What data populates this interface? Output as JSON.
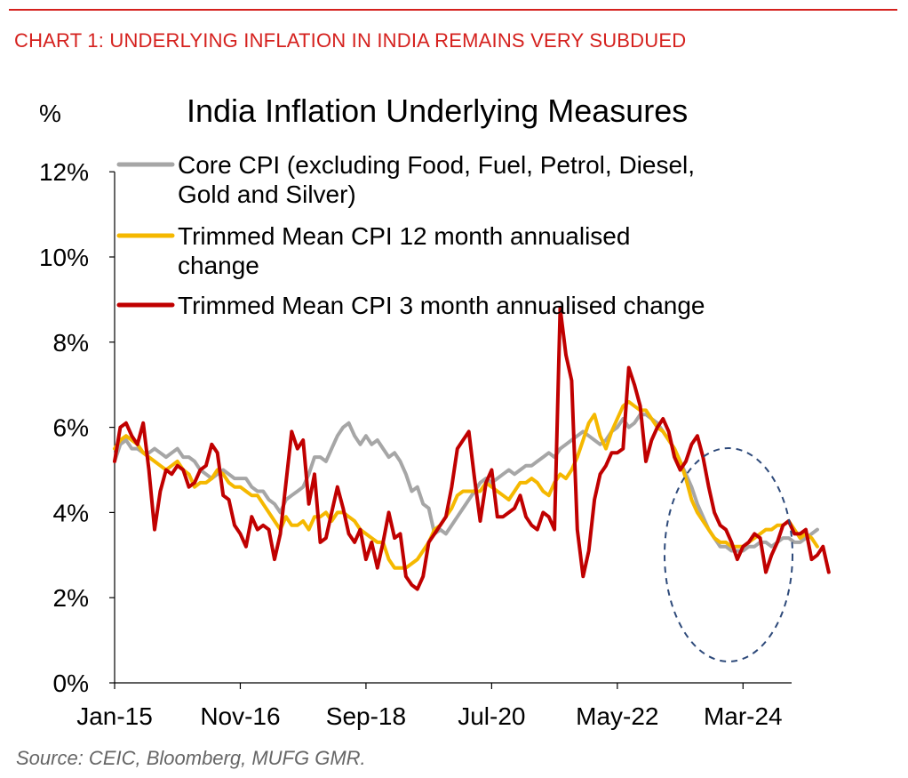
{
  "header": "CHART 1: UNDERLYING INFLATION IN INDIA REMAINS VERY SUBDUED",
  "source": "Source: CEIC, Bloomberg, MUFG GMR.",
  "colors": {
    "header_red": "#d5211e",
    "core": "#a6a6a6",
    "trim12": "#f5b800",
    "trim3": "#c00000",
    "ellipse": "#2e4a7a"
  },
  "chart_data": {
    "type": "line",
    "title": "India Inflation Underlying Measures",
    "ylabel": "%",
    "xlabel": "",
    "ylim": [
      0,
      12
    ],
    "yticks": [
      "0%",
      "2%",
      "4%",
      "6%",
      "8%",
      "10%",
      "12%"
    ],
    "xticks": [
      "Jan-15",
      "Nov-16",
      "Sep-18",
      "Jul-20",
      "May-22",
      "Mar-24"
    ],
    "x_start": "2015-01",
    "frequency": "monthly",
    "grid": false,
    "legend": "top",
    "series": [
      {
        "name": "Core CPI (excluding Food, Fuel, Petrol, Diesel, Gold and Silver)",
        "values": [
          5.2,
          5.6,
          5.7,
          5.5,
          5.5,
          5.4,
          5.4,
          5.5,
          5.4,
          5.3,
          5.4,
          5.5,
          5.3,
          5.3,
          5.2,
          5.0,
          4.9,
          4.8,
          4.9,
          5.0,
          4.9,
          4.8,
          4.8,
          4.8,
          4.6,
          4.5,
          4.5,
          4.3,
          4.2,
          4.0,
          4.3,
          4.4,
          4.5,
          4.6,
          4.9,
          5.3,
          5.3,
          5.2,
          5.5,
          5.8,
          6.0,
          6.1,
          5.8,
          5.6,
          5.8,
          5.6,
          5.7,
          5.5,
          5.3,
          5.4,
          5.2,
          4.9,
          4.5,
          4.6,
          4.2,
          4.1,
          3.5,
          3.6,
          3.5,
          3.7,
          3.9,
          4.1,
          4.3,
          4.5,
          4.7,
          4.8,
          4.7,
          4.8,
          4.9,
          5.0,
          4.9,
          5.0,
          5.1,
          5.1,
          5.2,
          5.3,
          5.4,
          5.3,
          5.5,
          5.6,
          5.7,
          5.8,
          5.9,
          5.8,
          5.7,
          5.6,
          5.7,
          5.9,
          6.0,
          6.2,
          6.0,
          6.1,
          6.3,
          6.3,
          6.2,
          6.1,
          5.9,
          5.7,
          5.5,
          5.2,
          4.9,
          4.6,
          4.2,
          3.9,
          3.6,
          3.4,
          3.2,
          3.2,
          3.1,
          3.1,
          3.1,
          3.2,
          3.2,
          3.3,
          3.3,
          3.2,
          3.3,
          3.4,
          3.4,
          3.3,
          3.3,
          3.4,
          3.5,
          3.6
        ]
      },
      {
        "name": "Trimmed Mean CPI 12 month annualised change",
        "values": [
          5.5,
          5.7,
          5.8,
          5.7,
          5.6,
          5.4,
          5.3,
          5.2,
          5.1,
          5.0,
          5.1,
          5.2,
          5.0,
          4.9,
          4.6,
          4.7,
          4.7,
          4.8,
          5.0,
          4.9,
          4.7,
          4.6,
          4.6,
          4.5,
          4.4,
          4.4,
          4.2,
          4.0,
          3.8,
          3.6,
          3.9,
          3.7,
          3.7,
          3.8,
          3.6,
          3.9,
          3.9,
          4.0,
          3.8,
          4.0,
          4.0,
          3.9,
          3.8,
          3.6,
          3.5,
          3.4,
          3.3,
          3.3,
          2.9,
          2.7,
          2.7,
          2.7,
          2.8,
          2.9,
          3.1,
          3.3,
          3.6,
          3.7,
          3.9,
          4.1,
          4.4,
          4.5,
          4.5,
          4.5,
          4.5,
          4.7,
          4.6,
          4.5,
          4.4,
          4.3,
          4.5,
          4.7,
          4.7,
          4.8,
          4.7,
          4.5,
          4.4,
          4.7,
          4.9,
          4.8,
          5.0,
          5.3,
          5.7,
          6.1,
          6.3,
          5.8,
          5.5,
          5.9,
          6.2,
          6.5,
          6.6,
          6.5,
          6.4,
          6.4,
          6.2,
          6.0,
          5.9,
          5.7,
          5.5,
          5.2,
          4.8,
          4.3,
          4.0,
          3.8,
          3.6,
          3.4,
          3.3,
          3.3,
          3.2,
          3.2,
          3.2,
          3.3,
          3.4,
          3.5,
          3.6,
          3.6,
          3.7,
          3.7,
          3.8,
          3.6,
          3.4,
          3.5,
          3.4,
          3.2
        ]
      },
      {
        "name": "Trimmed Mean CPI 3 month annualised change",
        "values": [
          5.2,
          6.0,
          6.1,
          5.8,
          5.6,
          6.1,
          5.0,
          3.6,
          4.5,
          5.0,
          4.9,
          5.1,
          5.0,
          4.6,
          4.7,
          5.0,
          5.1,
          5.6,
          5.4,
          4.4,
          4.3,
          3.7,
          3.5,
          3.2,
          3.9,
          3.6,
          3.7,
          3.6,
          2.9,
          3.5,
          4.7,
          5.9,
          5.5,
          5.7,
          4.2,
          4.9,
          3.3,
          3.4,
          4.0,
          4.6,
          4.1,
          3.5,
          3.3,
          3.6,
          2.9,
          3.3,
          2.7,
          3.3,
          4.0,
          3.4,
          3.5,
          2.5,
          2.3,
          2.2,
          2.5,
          3.3,
          3.5,
          3.7,
          3.9,
          4.6,
          5.5,
          5.7,
          5.9,
          4.8,
          3.8,
          4.7,
          5.0,
          3.9,
          3.9,
          4.0,
          4.1,
          4.4,
          3.9,
          3.7,
          3.6,
          4.0,
          3.9,
          3.6,
          8.8,
          7.7,
          7.1,
          3.6,
          2.5,
          3.1,
          4.3,
          4.9,
          5.1,
          5.4,
          5.4,
          5.5,
          7.4,
          7.0,
          6.5,
          5.2,
          5.7,
          6.0,
          6.2,
          5.9,
          5.3,
          5.0,
          5.2,
          5.6,
          5.8,
          5.3,
          4.6,
          4.0,
          3.7,
          3.6,
          3.3,
          2.9,
          3.2,
          3.3,
          3.5,
          3.4,
          2.6,
          3.0,
          3.3,
          3.7,
          3.8,
          3.5,
          3.5,
          3.6,
          2.9,
          3.0,
          3.2,
          2.6
        ]
      }
    ]
  }
}
